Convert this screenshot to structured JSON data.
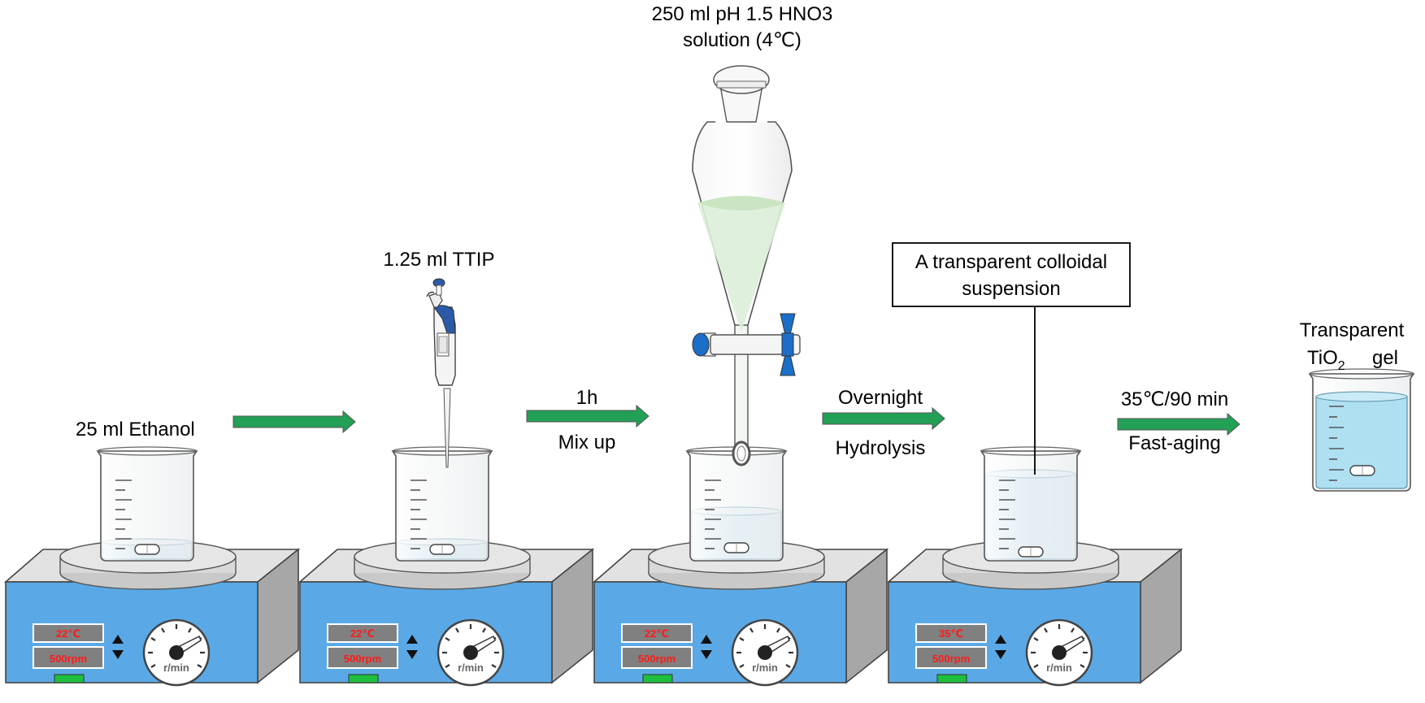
{
  "steps": [
    {
      "temp": "22℃",
      "speed": "500rpm",
      "dial_unit": "r/min"
    },
    {
      "temp": "22℃",
      "speed": "500rpm",
      "dial_unit": "r/min"
    },
    {
      "temp": "22℃",
      "speed": "500rpm",
      "dial_unit": "r/min"
    },
    {
      "temp": "35℃",
      "speed": "500rpm",
      "dial_unit": "r/min"
    }
  ],
  "labels": {
    "ethanol": "25 ml Ethanol",
    "ttip": "1.25 ml TTIP",
    "hno3_line1": "250 ml pH 1.5 HNO3",
    "hno3_line2": "solution (4℃)",
    "mix_time": "1h",
    "mix_action": "Mix up",
    "overnight": "Overnight",
    "hydrolysis": "Hydrolysis",
    "colloid_line1": "A transparent colloidal",
    "colloid_line2": "suspension",
    "aging_cond": "35℃/90 min",
    "aging_action": "Fast-aging",
    "gel_line1": "Transparent",
    "gel_formula": "TiO",
    "gel_subscript": "2",
    "gel_word": "gel"
  },
  "colors": {
    "arrow": "#22a056",
    "panel": "#5aa9e6",
    "display": "#808080",
    "display_text": "#ff1a1a",
    "indicator": "#1fbf3f",
    "solution": "#cfe7f2",
    "acid": "#dcefd8",
    "gel": "#aee0f2",
    "stopcock": "#1b6fc9"
  }
}
